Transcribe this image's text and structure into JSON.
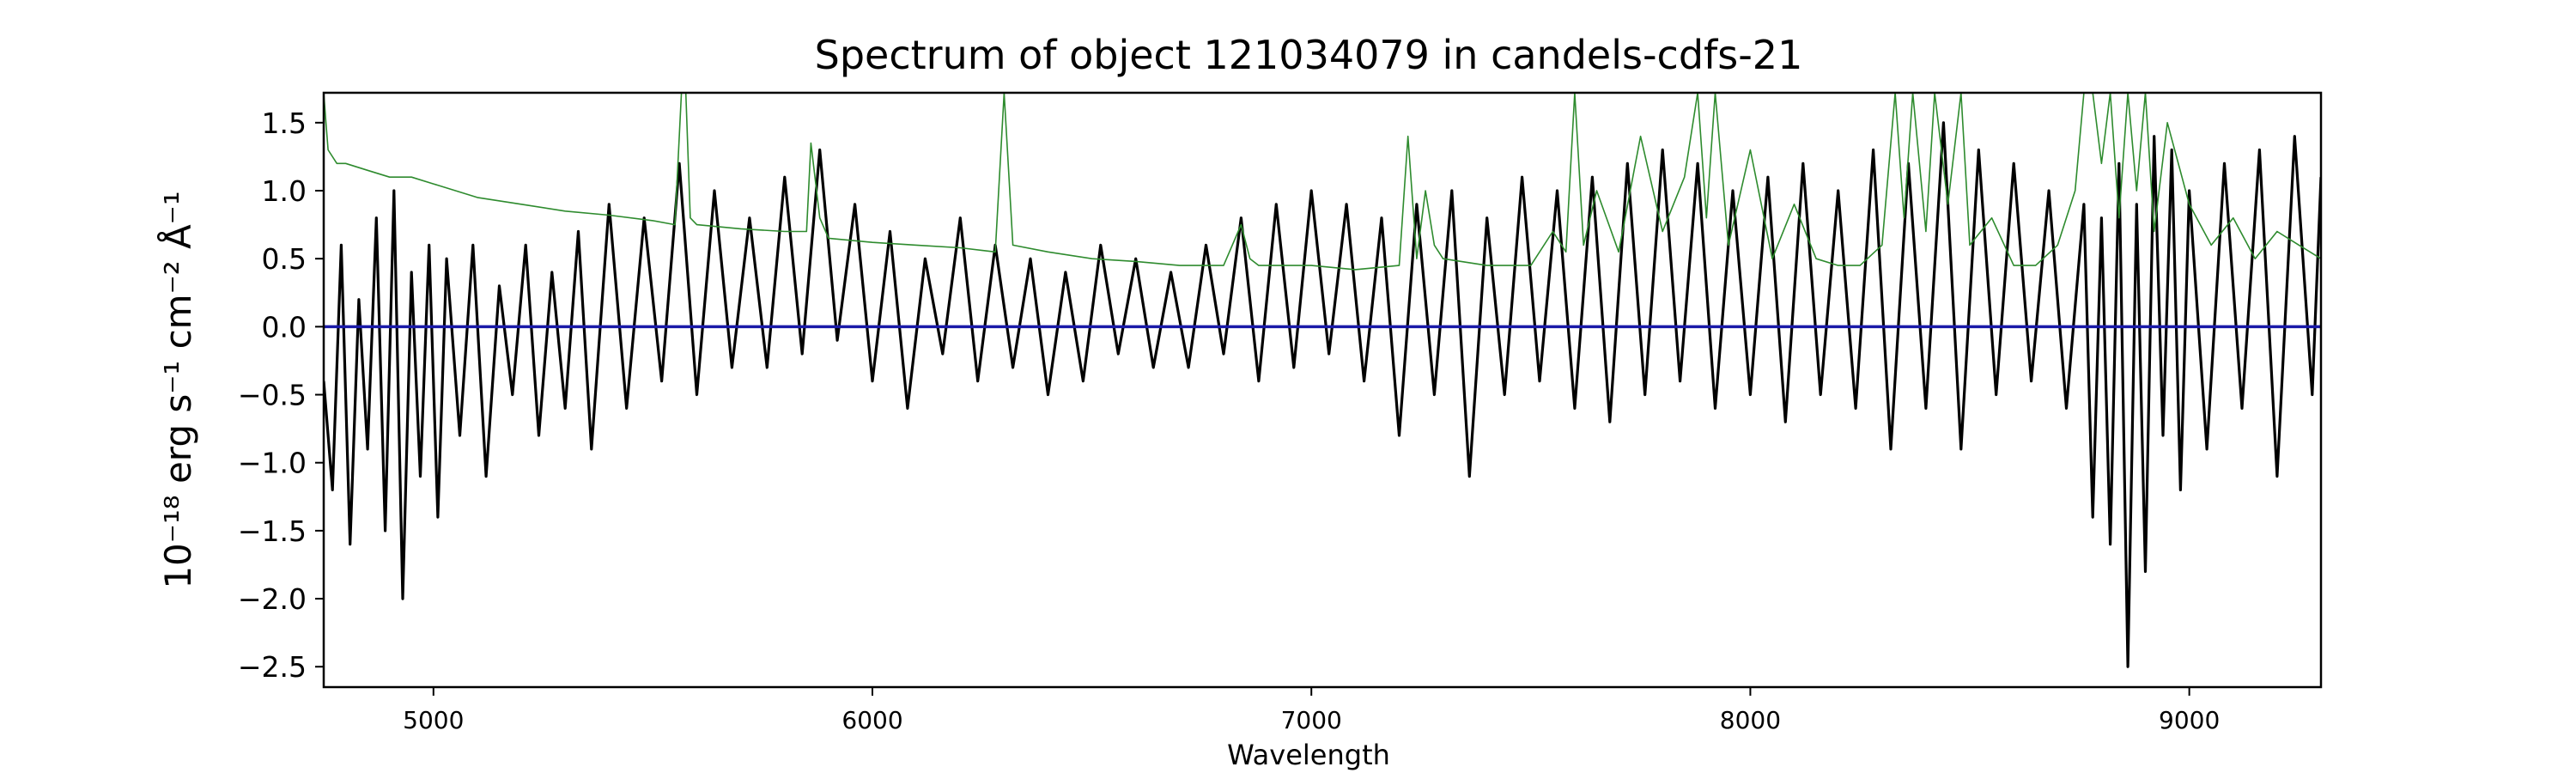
{
  "chart_data": {
    "type": "line",
    "title": "Spectrum of object 121034079 in candels-cdfs-21",
    "xlabel": "Wavelength",
    "ylabel": "10⁻¹⁸ erg s⁻¹ cm⁻² Å⁻¹",
    "xlim": [
      4750,
      9300
    ],
    "ylim": [
      -2.65,
      1.72
    ],
    "xticks": [
      5000,
      6000,
      7000,
      8000,
      9000
    ],
    "xtick_labels": [
      "5000",
      "6000",
      "7000",
      "8000",
      "9000"
    ],
    "yticks": [
      -2.5,
      -2.0,
      -1.5,
      -1.0,
      -0.5,
      0.0,
      0.5,
      1.0,
      1.5
    ],
    "ytick_labels": [
      "−2.5",
      "−2.0",
      "−1.5",
      "−1.0",
      "−0.5",
      "0.0",
      "0.5",
      "1.0",
      "1.5"
    ],
    "grid": false,
    "series": [
      {
        "role": "flux",
        "color": "#000000",
        "x": [
          4750,
          4770,
          4790,
          4810,
          4830,
          4850,
          4870,
          4890,
          4910,
          4930,
          4950,
          4970,
          4990,
          5010,
          5030,
          5060,
          5090,
          5120,
          5150,
          5180,
          5210,
          5240,
          5270,
          5300,
          5330,
          5360,
          5400,
          5440,
          5480,
          5520,
          5560,
          5600,
          5640,
          5680,
          5720,
          5760,
          5800,
          5840,
          5880,
          5920,
          5960,
          6000,
          6040,
          6080,
          6120,
          6160,
          6200,
          6240,
          6280,
          6320,
          6360,
          6400,
          6440,
          6480,
          6520,
          6560,
          6600,
          6640,
          6680,
          6720,
          6760,
          6800,
          6840,
          6880,
          6920,
          6960,
          7000,
          7040,
          7080,
          7120,
          7160,
          7200,
          7240,
          7280,
          7320,
          7360,
          7400,
          7440,
          7480,
          7520,
          7560,
          7600,
          7640,
          7680,
          7720,
          7760,
          7800,
          7840,
          7880,
          7920,
          7960,
          8000,
          8040,
          8080,
          8120,
          8160,
          8200,
          8240,
          8280,
          8320,
          8360,
          8400,
          8440,
          8480,
          8520,
          8560,
          8600,
          8640,
          8680,
          8720,
          8760,
          8780,
          8800,
          8820,
          8840,
          8860,
          8880,
          8900,
          8920,
          8940,
          8960,
          8980,
          9000,
          9040,
          9080,
          9120,
          9160,
          9200,
          9240,
          9280,
          9300
        ],
        "y": [
          -0.4,
          -1.2,
          0.6,
          -1.6,
          0.2,
          -0.9,
          0.8,
          -1.5,
          1.0,
          -2.0,
          0.4,
          -1.1,
          0.6,
          -1.4,
          0.5,
          -0.8,
          0.6,
          -1.1,
          0.3,
          -0.5,
          0.6,
          -0.8,
          0.4,
          -0.6,
          0.7,
          -0.9,
          0.9,
          -0.6,
          0.8,
          -0.4,
          1.2,
          -0.5,
          1.0,
          -0.3,
          0.8,
          -0.3,
          1.1,
          -0.2,
          1.3,
          -0.1,
          0.9,
          -0.4,
          0.7,
          -0.6,
          0.5,
          -0.2,
          0.8,
          -0.4,
          0.6,
          -0.3,
          0.5,
          -0.5,
          0.4,
          -0.4,
          0.6,
          -0.2,
          0.5,
          -0.3,
          0.4,
          -0.3,
          0.6,
          -0.2,
          0.8,
          -0.4,
          0.9,
          -0.3,
          1.0,
          -0.2,
          0.9,
          -0.4,
          0.8,
          -0.8,
          0.9,
          -0.5,
          1.0,
          -1.1,
          0.8,
          -0.5,
          1.1,
          -0.4,
          1.0,
          -0.6,
          1.1,
          -0.7,
          1.2,
          -0.5,
          1.3,
          -0.4,
          1.2,
          -0.6,
          1.0,
          -0.5,
          1.1,
          -0.7,
          1.2,
          -0.5,
          1.0,
          -0.6,
          1.3,
          -0.9,
          1.2,
          -0.6,
          1.5,
          -0.9,
          1.3,
          -0.5,
          1.2,
          -0.4,
          1.0,
          -0.6,
          0.9,
          -1.4,
          0.8,
          -1.6,
          1.2,
          -2.5,
          0.9,
          -1.8,
          1.4,
          -0.8,
          1.3,
          -1.2,
          1.0,
          -0.9,
          1.2,
          -0.6,
          1.3,
          -1.1,
          1.4,
          -0.5,
          1.1
        ]
      },
      {
        "role": "noise",
        "color": "#2e8b2e",
        "x": [
          4750,
          4755,
          4760,
          4780,
          4800,
          4850,
          4900,
          4950,
          5000,
          5100,
          5200,
          5300,
          5400,
          5500,
          5550,
          5565,
          5575,
          5585,
          5600,
          5700,
          5800,
          5850,
          5860,
          5880,
          5900,
          6000,
          6100,
          6200,
          6280,
          6300,
          6320,
          6400,
          6500,
          6600,
          6700,
          6800,
          6840,
          6860,
          6880,
          6900,
          7000,
          7100,
          7200,
          7220,
          7240,
          7260,
          7280,
          7300,
          7400,
          7500,
          7550,
          7580,
          7600,
          7620,
          7650,
          7700,
          7750,
          7800,
          7850,
          7880,
          7900,
          7920,
          7950,
          8000,
          8050,
          8100,
          8150,
          8200,
          8250,
          8300,
          8330,
          8350,
          8370,
          8400,
          8420,
          8450,
          8480,
          8500,
          8550,
          8600,
          8650,
          8700,
          8740,
          8760,
          8780,
          8800,
          8820,
          8840,
          8860,
          8880,
          8900,
          8920,
          8950,
          9000,
          9050,
          9100,
          9150,
          9200,
          9250,
          9300
        ],
        "y": [
          1.72,
          1.5,
          1.3,
          1.2,
          1.2,
          1.15,
          1.1,
          1.1,
          1.05,
          0.95,
          0.9,
          0.85,
          0.82,
          0.78,
          0.75,
          1.72,
          1.72,
          0.8,
          0.75,
          0.72,
          0.7,
          0.7,
          1.35,
          0.8,
          0.65,
          0.62,
          0.6,
          0.58,
          0.55,
          1.72,
          0.6,
          0.55,
          0.5,
          0.48,
          0.45,
          0.45,
          0.75,
          0.5,
          0.45,
          0.45,
          0.45,
          0.42,
          0.45,
          1.4,
          0.5,
          1.0,
          0.6,
          0.5,
          0.45,
          0.45,
          0.7,
          0.55,
          1.72,
          0.6,
          1.0,
          0.55,
          1.4,
          0.7,
          1.1,
          1.72,
          0.8,
          1.72,
          0.6,
          1.3,
          0.5,
          0.9,
          0.5,
          0.45,
          0.45,
          0.6,
          1.72,
          0.8,
          1.72,
          0.7,
          1.72,
          0.9,
          1.72,
          0.6,
          0.8,
          0.45,
          0.45,
          0.6,
          1.0,
          1.72,
          1.72,
          1.2,
          1.72,
          0.8,
          1.72,
          1.0,
          1.72,
          0.7,
          1.5,
          0.9,
          0.6,
          0.8,
          0.5,
          0.7,
          0.6,
          0.5
        ]
      },
      {
        "role": "zero-level",
        "color": "#1a1aa8",
        "x": [
          4750,
          9300
        ],
        "y": [
          0,
          0
        ]
      }
    ]
  }
}
